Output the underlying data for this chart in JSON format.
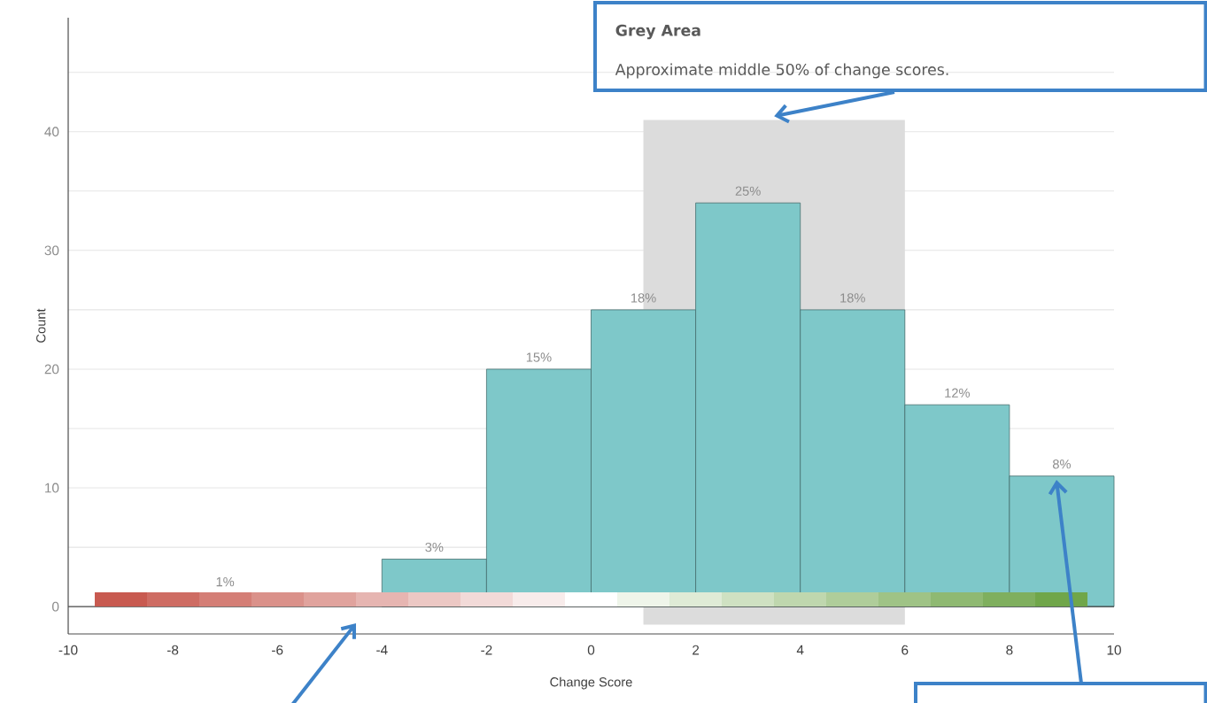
{
  "chart_data": {
    "type": "histogram",
    "xlabel": "Change Score",
    "ylabel": "Count",
    "bins": [
      -10,
      -8,
      -6,
      -4,
      -2,
      0,
      2,
      4,
      6,
      8,
      10
    ],
    "values": [
      0,
      null,
      0,
      4,
      20,
      25,
      34,
      25,
      17,
      11
    ],
    "color": "#7ec8c9",
    "xlim": [
      -10,
      10
    ],
    "ylim": [
      -2.3,
      49.6
    ],
    "xticks": [
      -10,
      -8,
      -6,
      -4,
      -2,
      0,
      2,
      4,
      6,
      8,
      10
    ],
    "yticks": [
      0,
      {
        "value": 5,
        "label": null
      },
      10,
      {
        "value": 15,
        "label": null
      },
      20,
      {
        "value": 25,
        "label": null
      },
      30,
      {
        "value": 35,
        "label": null
      },
      40,
      {
        "value": 45,
        "label": null
      }
    ],
    "grid": "y",
    "bands": [
      {
        "axis": "x",
        "from": 1,
        "to": 6,
        "color": "#dcdcdc"
      }
    ],
    "annotations": [
      "Grey Area",
      {
        "text": "Approximate middle 50% of change scores.",
        "x": 3.5,
        "y": 41
      },
      "1%",
      {
        "text": "3%",
        "x": -3,
        "y": 4
      },
      {
        "text": "15%",
        "x": -1,
        "y": 20
      },
      {
        "text": "18%",
        "x": 1,
        "y": 25
      },
      {
        "text": "25%",
        "x": 3,
        "y": 34
      },
      {
        "text": "18%",
        "x": 5,
        "y": 25
      },
      {
        "text": "12%",
        "x": 7,
        "y": 17
      },
      {
        "text": "8%",
        "x": 9,
        "y": 11
      }
    ]
  }
}
